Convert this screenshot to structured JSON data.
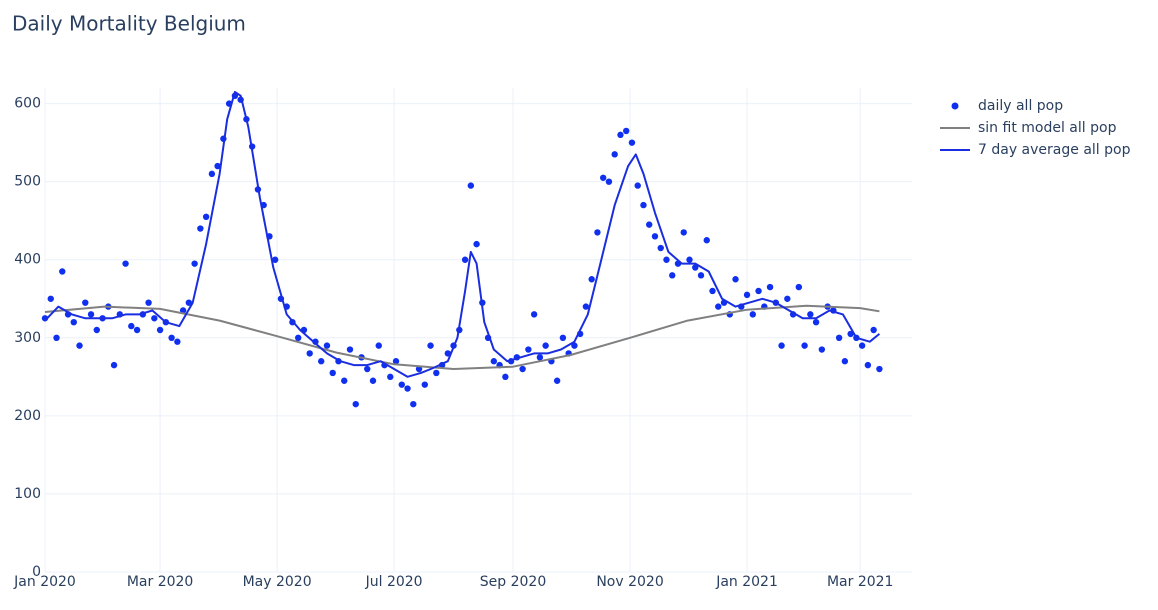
{
  "chart_data": {
    "type": "scatter",
    "title": "Daily Mortality Belgium",
    "xlim": [
      "2020-01-01",
      "2021-03-28"
    ],
    "ylim": [
      0,
      620
    ],
    "xticks": [
      {
        "value": "2020-01-01",
        "label": "Jan 2020"
      },
      {
        "value": "2020-03-01",
        "label": "Mar 2020"
      },
      {
        "value": "2020-05-01",
        "label": "May 2020"
      },
      {
        "value": "2020-07-01",
        "label": "Jul 2020"
      },
      {
        "value": "2020-09-01",
        "label": "Sep 2020"
      },
      {
        "value": "2020-11-01",
        "label": "Nov 2020"
      },
      {
        "value": "2021-01-01",
        "label": "Jan 2021"
      },
      {
        "value": "2021-03-01",
        "label": "Mar 2021"
      }
    ],
    "yticks": [
      0,
      100,
      200,
      300,
      400,
      500,
      600
    ],
    "grid": true,
    "legend": "right",
    "series": [
      {
        "name": "daily all pop",
        "mode": "markers",
        "color": "#1030f0",
        "x": [
          "2020-01-01",
          "2020-01-04",
          "2020-01-07",
          "2020-01-10",
          "2020-01-13",
          "2020-01-16",
          "2020-01-19",
          "2020-01-22",
          "2020-01-25",
          "2020-01-28",
          "2020-01-31",
          "2020-02-03",
          "2020-02-06",
          "2020-02-09",
          "2020-02-12",
          "2020-02-15",
          "2020-02-18",
          "2020-02-21",
          "2020-02-24",
          "2020-02-27",
          "2020-03-01",
          "2020-03-04",
          "2020-03-07",
          "2020-03-10",
          "2020-03-13",
          "2020-03-16",
          "2020-03-19",
          "2020-03-22",
          "2020-03-25",
          "2020-03-28",
          "2020-03-31",
          "2020-04-03",
          "2020-04-06",
          "2020-04-09",
          "2020-04-12",
          "2020-04-15",
          "2020-04-18",
          "2020-04-21",
          "2020-04-24",
          "2020-04-27",
          "2020-04-30",
          "2020-05-03",
          "2020-05-06",
          "2020-05-09",
          "2020-05-12",
          "2020-05-15",
          "2020-05-18",
          "2020-05-21",
          "2020-05-24",
          "2020-05-27",
          "2020-05-30",
          "2020-06-02",
          "2020-06-05",
          "2020-06-08",
          "2020-06-11",
          "2020-06-14",
          "2020-06-17",
          "2020-06-20",
          "2020-06-23",
          "2020-06-26",
          "2020-06-29",
          "2020-07-02",
          "2020-07-05",
          "2020-07-08",
          "2020-07-11",
          "2020-07-14",
          "2020-07-17",
          "2020-07-20",
          "2020-07-23",
          "2020-07-26",
          "2020-07-29",
          "2020-08-01",
          "2020-08-04",
          "2020-08-07",
          "2020-08-10",
          "2020-08-13",
          "2020-08-16",
          "2020-08-19",
          "2020-08-22",
          "2020-08-25",
          "2020-08-28",
          "2020-08-31",
          "2020-09-03",
          "2020-09-06",
          "2020-09-09",
          "2020-09-12",
          "2020-09-15",
          "2020-09-18",
          "2020-09-21",
          "2020-09-24",
          "2020-09-27",
          "2020-09-30",
          "2020-10-03",
          "2020-10-06",
          "2020-10-09",
          "2020-10-12",
          "2020-10-15",
          "2020-10-18",
          "2020-10-21",
          "2020-10-24",
          "2020-10-27",
          "2020-10-30",
          "2020-11-02",
          "2020-11-05",
          "2020-11-08",
          "2020-11-11",
          "2020-11-14",
          "2020-11-17",
          "2020-11-20",
          "2020-11-23",
          "2020-11-26",
          "2020-11-29",
          "2020-12-02",
          "2020-12-05",
          "2020-12-08",
          "2020-12-11",
          "2020-12-14",
          "2020-12-17",
          "2020-12-20",
          "2020-12-23",
          "2020-12-26",
          "2020-12-29",
          "2021-01-01",
          "2021-01-04",
          "2021-01-07",
          "2021-01-10",
          "2021-01-13",
          "2021-01-16",
          "2021-01-19",
          "2021-01-22",
          "2021-01-25",
          "2021-01-28",
          "2021-01-31",
          "2021-02-03",
          "2021-02-06",
          "2021-02-09",
          "2021-02-12",
          "2021-02-15",
          "2021-02-18",
          "2021-02-21",
          "2021-02-24",
          "2021-02-27",
          "2021-03-02",
          "2021-03-05",
          "2021-03-08",
          "2021-03-11"
        ],
        "values": [
          325,
          350,
          300,
          385,
          330,
          320,
          290,
          345,
          330,
          310,
          325,
          340,
          265,
          330,
          395,
          315,
          310,
          330,
          345,
          325,
          310,
          320,
          300,
          295,
          335,
          345,
          395,
          440,
          455,
          510,
          520,
          555,
          600,
          610,
          605,
          580,
          545,
          490,
          470,
          430,
          400,
          350,
          340,
          320,
          300,
          310,
          280,
          295,
          270,
          290,
          255,
          270,
          245,
          285,
          215,
          275,
          260,
          245,
          290,
          265,
          250,
          270,
          240,
          235,
          215,
          260,
          240,
          290,
          255,
          265,
          280,
          290,
          310,
          400,
          495,
          420,
          345,
          300,
          270,
          265,
          250,
          270,
          275,
          260,
          285,
          330,
          275,
          290,
          270,
          245,
          300,
          280,
          290,
          305,
          340,
          375,
          435,
          505,
          500,
          535,
          560,
          565,
          550,
          495,
          470,
          445,
          430,
          415,
          400,
          380,
          395,
          435,
          400,
          390,
          380,
          425,
          360,
          340,
          345,
          330,
          375,
          340,
          355,
          330,
          360,
          340,
          365,
          345,
          290,
          350,
          330,
          365,
          290,
          330,
          320,
          285,
          340,
          335,
          300,
          270,
          305,
          300,
          290,
          265,
          310,
          260
        ]
      },
      {
        "name": "sin fit model all pop",
        "mode": "lines",
        "color": "#808080",
        "x": [
          "2020-01-01",
          "2020-02-01",
          "2020-03-01",
          "2020-04-01",
          "2020-05-01",
          "2020-06-01",
          "2020-07-01",
          "2020-08-01",
          "2020-09-01",
          "2020-10-01",
          "2020-11-01",
          "2020-12-01",
          "2021-01-01",
          "2021-02-01",
          "2021-03-01",
          "2021-03-11"
        ],
        "values": [
          333,
          340,
          337,
          322,
          302,
          281,
          266,
          260,
          263,
          278,
          300,
          322,
          336,
          341,
          338,
          334
        ]
      },
      {
        "name": "7 day average all pop",
        "mode": "lines",
        "color": "#1a2ee0",
        "x": [
          "2020-01-01",
          "2020-01-08",
          "2020-01-15",
          "2020-01-22",
          "2020-01-29",
          "2020-02-05",
          "2020-02-12",
          "2020-02-19",
          "2020-02-26",
          "2020-03-04",
          "2020-03-11",
          "2020-03-18",
          "2020-03-25",
          "2020-04-01",
          "2020-04-05",
          "2020-04-09",
          "2020-04-12",
          "2020-04-16",
          "2020-04-22",
          "2020-04-29",
          "2020-05-06",
          "2020-05-13",
          "2020-05-20",
          "2020-05-27",
          "2020-06-03",
          "2020-06-10",
          "2020-06-17",
          "2020-06-24",
          "2020-07-01",
          "2020-07-08",
          "2020-07-15",
          "2020-07-22",
          "2020-07-29",
          "2020-08-03",
          "2020-08-07",
          "2020-08-10",
          "2020-08-13",
          "2020-08-17",
          "2020-08-22",
          "2020-08-29",
          "2020-09-05",
          "2020-09-12",
          "2020-09-19",
          "2020-09-26",
          "2020-10-03",
          "2020-10-10",
          "2020-10-17",
          "2020-10-24",
          "2020-10-31",
          "2020-11-04",
          "2020-11-08",
          "2020-11-14",
          "2020-11-21",
          "2020-11-28",
          "2020-12-05",
          "2020-12-12",
          "2020-12-19",
          "2020-12-26",
          "2021-01-02",
          "2021-01-09",
          "2021-01-16",
          "2021-01-23",
          "2021-01-30",
          "2021-02-06",
          "2021-02-13",
          "2021-02-20",
          "2021-02-27",
          "2021-03-06",
          "2021-03-11"
        ],
        "values": [
          322,
          340,
          330,
          325,
          325,
          325,
          330,
          330,
          335,
          320,
          315,
          345,
          420,
          510,
          580,
          615,
          610,
          570,
          480,
          390,
          330,
          310,
          295,
          280,
          270,
          265,
          265,
          270,
          260,
          250,
          255,
          262,
          270,
          300,
          360,
          410,
          395,
          320,
          285,
          270,
          275,
          280,
          280,
          285,
          295,
          330,
          400,
          470,
          520,
          535,
          510,
          460,
          410,
          395,
          395,
          385,
          350,
          340,
          345,
          350,
          345,
          335,
          325,
          325,
          335,
          330,
          300,
          295,
          305
        ]
      }
    ]
  }
}
